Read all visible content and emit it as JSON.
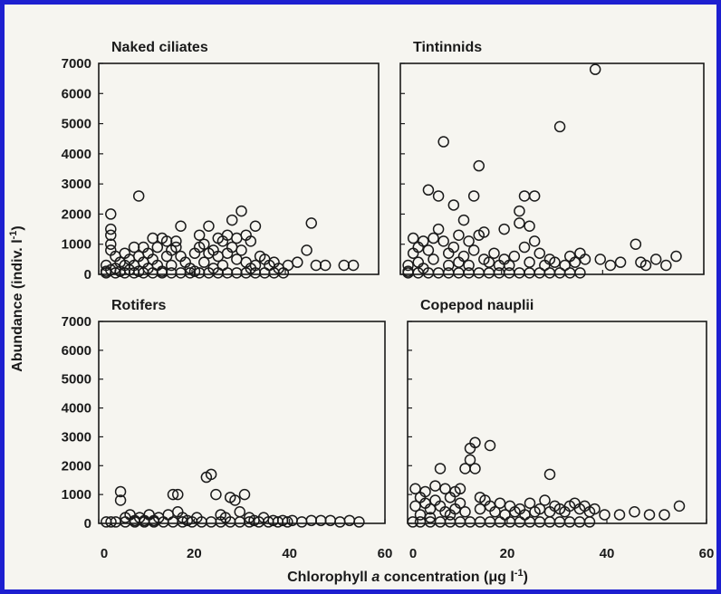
{
  "xlabel_parts": {
    "prefix": "Chlorophyll ",
    "italic": "a",
    "suffix": " concentration (μg l",
    "sup": "-1",
    "close": ")"
  },
  "ylabel_parts": {
    "prefix": "Abundance (indiv. l",
    "sup": "-1",
    "close": ")"
  },
  "colors": {
    "border": "#1d1fd0",
    "background": "#f6f5f0",
    "ink": "#1a1a1a"
  },
  "chart_data": [
    {
      "type": "scatter",
      "title": "Naked ciliates",
      "xlim": [
        0,
        60
      ],
      "ylim": [
        0,
        7000
      ],
      "xticks": [],
      "yticks": [
        0,
        1000,
        2000,
        3000,
        4000,
        5000,
        6000,
        7000
      ],
      "points": [
        [
          2,
          2000
        ],
        [
          2,
          1500
        ],
        [
          2,
          1300
        ],
        [
          2,
          1000
        ],
        [
          2,
          800
        ],
        [
          3,
          600
        ],
        [
          1,
          300
        ],
        [
          1,
          100
        ],
        [
          2,
          150
        ],
        [
          3,
          200
        ],
        [
          4,
          400
        ],
        [
          4,
          100
        ],
        [
          5,
          700
        ],
        [
          5,
          300
        ],
        [
          6,
          500
        ],
        [
          6,
          150
        ],
        [
          7,
          900
        ],
        [
          7,
          300
        ],
        [
          8,
          2600
        ],
        [
          8,
          600
        ],
        [
          8,
          100
        ],
        [
          9,
          400
        ],
        [
          9,
          900
        ],
        [
          10,
          200
        ],
        [
          10,
          700
        ],
        [
          11,
          1200
        ],
        [
          11,
          500
        ],
        [
          12,
          900
        ],
        [
          12,
          300
        ],
        [
          13,
          1200
        ],
        [
          13,
          100
        ],
        [
          14,
          1100
        ],
        [
          14,
          600
        ],
        [
          15,
          800
        ],
        [
          15,
          300
        ],
        [
          16,
          1100
        ],
        [
          16,
          900
        ],
        [
          17,
          1600
        ],
        [
          17,
          600
        ],
        [
          18,
          400
        ],
        [
          19,
          200
        ],
        [
          20,
          700
        ],
        [
          20,
          100
        ],
        [
          21,
          1300
        ],
        [
          21,
          900
        ],
        [
          22,
          1000
        ],
        [
          22,
          400
        ],
        [
          23,
          1600
        ],
        [
          23,
          700
        ],
        [
          24,
          800
        ],
        [
          24,
          200
        ],
        [
          25,
          600
        ],
        [
          25,
          1200
        ],
        [
          26,
          1100
        ],
        [
          26,
          300
        ],
        [
          27,
          1300
        ],
        [
          27,
          700
        ],
        [
          28,
          1800
        ],
        [
          28,
          900
        ],
        [
          29,
          1200
        ],
        [
          29,
          500
        ],
        [
          30,
          2100
        ],
        [
          30,
          800
        ],
        [
          31,
          1300
        ],
        [
          31,
          400
        ],
        [
          32,
          1100
        ],
        [
          32,
          200
        ],
        [
          33,
          1600
        ],
        [
          33,
          300
        ],
        [
          34,
          600
        ],
        [
          35,
          500
        ],
        [
          36,
          300
        ],
        [
          37,
          400
        ],
        [
          38,
          200
        ],
        [
          40,
          300
        ],
        [
          42,
          400
        ],
        [
          44,
          800
        ],
        [
          45,
          1700
        ],
        [
          46,
          300
        ],
        [
          48,
          300
        ],
        [
          52,
          300
        ],
        [
          54,
          300
        ],
        [
          1,
          50
        ],
        [
          3,
          50
        ],
        [
          5,
          50
        ],
        [
          7,
          50
        ],
        [
          9,
          50
        ],
        [
          11,
          50
        ],
        [
          13,
          50
        ],
        [
          15,
          50
        ],
        [
          17,
          50
        ],
        [
          19,
          50
        ],
        [
          21,
          50
        ],
        [
          23,
          50
        ],
        [
          25,
          50
        ],
        [
          27,
          50
        ],
        [
          29,
          50
        ],
        [
          31,
          50
        ],
        [
          33,
          50
        ],
        [
          35,
          50
        ],
        [
          37,
          50
        ],
        [
          39,
          50
        ]
      ]
    },
    {
      "type": "scatter",
      "title": "Tintinnids",
      "xlim": [
        0,
        60
      ],
      "ylim": [
        0,
        7000
      ],
      "xticks": [],
      "yticks": [],
      "points": [
        [
          1,
          300
        ],
        [
          1,
          100
        ],
        [
          2,
          700
        ],
        [
          2,
          1200
        ],
        [
          3,
          900
        ],
        [
          3,
          400
        ],
        [
          4,
          1100
        ],
        [
          4,
          200
        ],
        [
          5,
          800
        ],
        [
          5,
          2800
        ],
        [
          6,
          1200
        ],
        [
          6,
          500
        ],
        [
          7,
          2600
        ],
        [
          7,
          1500
        ],
        [
          8,
          4400
        ],
        [
          8,
          1100
        ],
        [
          9,
          700
        ],
        [
          9,
          300
        ],
        [
          10,
          2300
        ],
        [
          10,
          900
        ],
        [
          11,
          1300
        ],
        [
          11,
          400
        ],
        [
          12,
          1800
        ],
        [
          12,
          600
        ],
        [
          13,
          1100
        ],
        [
          13,
          300
        ],
        [
          14,
          2600
        ],
        [
          14,
          800
        ],
        [
          15,
          3600
        ],
        [
          15,
          1300
        ],
        [
          16,
          1400
        ],
        [
          16,
          500
        ],
        [
          17,
          400
        ],
        [
          18,
          700
        ],
        [
          19,
          300
        ],
        [
          20,
          1500
        ],
        [
          20,
          500
        ],
        [
          21,
          300
        ],
        [
          22,
          600
        ],
        [
          23,
          2100
        ],
        [
          23,
          1700
        ],
        [
          24,
          2600
        ],
        [
          24,
          900
        ],
        [
          25,
          1600
        ],
        [
          25,
          400
        ],
        [
          26,
          2600
        ],
        [
          26,
          1100
        ],
        [
          27,
          700
        ],
        [
          28,
          300
        ],
        [
          29,
          500
        ],
        [
          30,
          400
        ],
        [
          31,
          4900
        ],
        [
          32,
          300
        ],
        [
          33,
          600
        ],
        [
          34,
          400
        ],
        [
          35,
          700
        ],
        [
          36,
          500
        ],
        [
          38,
          6800
        ],
        [
          39,
          500
        ],
        [
          41,
          300
        ],
        [
          43,
          400
        ],
        [
          46,
          1000
        ],
        [
          47,
          400
        ],
        [
          48,
          300
        ],
        [
          50,
          500
        ],
        [
          52,
          300
        ],
        [
          54,
          600
        ],
        [
          1,
          50
        ],
        [
          3,
          50
        ],
        [
          5,
          50
        ],
        [
          7,
          50
        ],
        [
          9,
          50
        ],
        [
          11,
          50
        ],
        [
          13,
          50
        ],
        [
          15,
          50
        ],
        [
          17,
          50
        ],
        [
          19,
          50
        ],
        [
          21,
          50
        ],
        [
          23,
          50
        ],
        [
          25,
          50
        ],
        [
          27,
          50
        ],
        [
          29,
          50
        ],
        [
          31,
          50
        ],
        [
          33,
          50
        ],
        [
          35,
          50
        ]
      ]
    },
    {
      "type": "scatter",
      "title": "Rotifers",
      "xlim": [
        0,
        60
      ],
      "ylim": [
        0,
        7000
      ],
      "xticks": [
        0,
        20,
        40,
        60
      ],
      "yticks": [
        0,
        1000,
        2000,
        3000,
        4000,
        5000,
        6000,
        7000
      ],
      "points": [
        [
          4,
          1100
        ],
        [
          4,
          800
        ],
        [
          5,
          200
        ],
        [
          6,
          300
        ],
        [
          7,
          100
        ],
        [
          8,
          200
        ],
        [
          9,
          100
        ],
        [
          10,
          300
        ],
        [
          11,
          100
        ],
        [
          12,
          200
        ],
        [
          14,
          300
        ],
        [
          15,
          1000
        ],
        [
          16,
          1000
        ],
        [
          16,
          400
        ],
        [
          17,
          200
        ],
        [
          18,
          100
        ],
        [
          20,
          200
        ],
        [
          22,
          1600
        ],
        [
          23,
          1700
        ],
        [
          24,
          1000
        ],
        [
          25,
          300
        ],
        [
          26,
          200
        ],
        [
          27,
          900
        ],
        [
          28,
          800
        ],
        [
          29,
          400
        ],
        [
          30,
          1000
        ],
        [
          31,
          200
        ],
        [
          32,
          100
        ],
        [
          34,
          200
        ],
        [
          36,
          100
        ],
        [
          38,
          100
        ],
        [
          40,
          100
        ],
        [
          44,
          100
        ],
        [
          46,
          100
        ],
        [
          48,
          100
        ],
        [
          52,
          100
        ],
        [
          1,
          50
        ],
        [
          2,
          50
        ],
        [
          3,
          50
        ],
        [
          5,
          50
        ],
        [
          7,
          50
        ],
        [
          9,
          50
        ],
        [
          11,
          50
        ],
        [
          13,
          50
        ],
        [
          15,
          50
        ],
        [
          17,
          50
        ],
        [
          19,
          50
        ],
        [
          21,
          50
        ],
        [
          23,
          50
        ],
        [
          25,
          50
        ],
        [
          27,
          50
        ],
        [
          29,
          50
        ],
        [
          31,
          50
        ],
        [
          33,
          50
        ],
        [
          35,
          50
        ],
        [
          37,
          50
        ],
        [
          39,
          50
        ],
        [
          42,
          50
        ],
        [
          50,
          50
        ],
        [
          54,
          50
        ]
      ]
    },
    {
      "type": "scatter",
      "title": "Copepod nauplii",
      "xlim": [
        0,
        60
      ],
      "ylim": [
        0,
        7000
      ],
      "xticks": [
        0,
        20,
        40,
        60
      ],
      "yticks": [],
      "points": [
        [
          1,
          1200
        ],
        [
          1,
          600
        ],
        [
          2,
          900
        ],
        [
          2,
          300
        ],
        [
          3,
          700
        ],
        [
          3,
          1100
        ],
        [
          4,
          500
        ],
        [
          4,
          200
        ],
        [
          5,
          1300
        ],
        [
          5,
          800
        ],
        [
          6,
          1900
        ],
        [
          6,
          600
        ],
        [
          7,
          1200
        ],
        [
          7,
          400
        ],
        [
          8,
          900
        ],
        [
          8,
          300
        ],
        [
          9,
          1100
        ],
        [
          9,
          500
        ],
        [
          10,
          1200
        ],
        [
          10,
          700
        ],
        [
          11,
          1900
        ],
        [
          11,
          400
        ],
        [
          12,
          2600
        ],
        [
          12,
          2200
        ],
        [
          13,
          2800
        ],
        [
          13,
          1900
        ],
        [
          14,
          900
        ],
        [
          14,
          500
        ],
        [
          15,
          800
        ],
        [
          16,
          2700
        ],
        [
          16,
          600
        ],
        [
          17,
          400
        ],
        [
          18,
          700
        ],
        [
          19,
          300
        ],
        [
          20,
          600
        ],
        [
          21,
          400
        ],
        [
          22,
          500
        ],
        [
          23,
          300
        ],
        [
          24,
          700
        ],
        [
          25,
          400
        ],
        [
          26,
          500
        ],
        [
          27,
          800
        ],
        [
          28,
          1700
        ],
        [
          28,
          400
        ],
        [
          29,
          600
        ],
        [
          30,
          500
        ],
        [
          31,
          400
        ],
        [
          32,
          600
        ],
        [
          33,
          700
        ],
        [
          34,
          500
        ],
        [
          35,
          600
        ],
        [
          36,
          400
        ],
        [
          37,
          500
        ],
        [
          39,
          300
        ],
        [
          42,
          300
        ],
        [
          45,
          400
        ],
        [
          48,
          300
        ],
        [
          51,
          300
        ],
        [
          54,
          600
        ],
        [
          0.5,
          50
        ],
        [
          2,
          50
        ],
        [
          4,
          50
        ],
        [
          6,
          50
        ],
        [
          8,
          50
        ],
        [
          10,
          50
        ],
        [
          12,
          50
        ],
        [
          14,
          50
        ],
        [
          16,
          50
        ],
        [
          18,
          50
        ],
        [
          20,
          50
        ],
        [
          22,
          50
        ],
        [
          24,
          50
        ],
        [
          26,
          50
        ],
        [
          28,
          50
        ],
        [
          30,
          50
        ],
        [
          32,
          50
        ],
        [
          34,
          50
        ],
        [
          36,
          50
        ]
      ]
    }
  ]
}
